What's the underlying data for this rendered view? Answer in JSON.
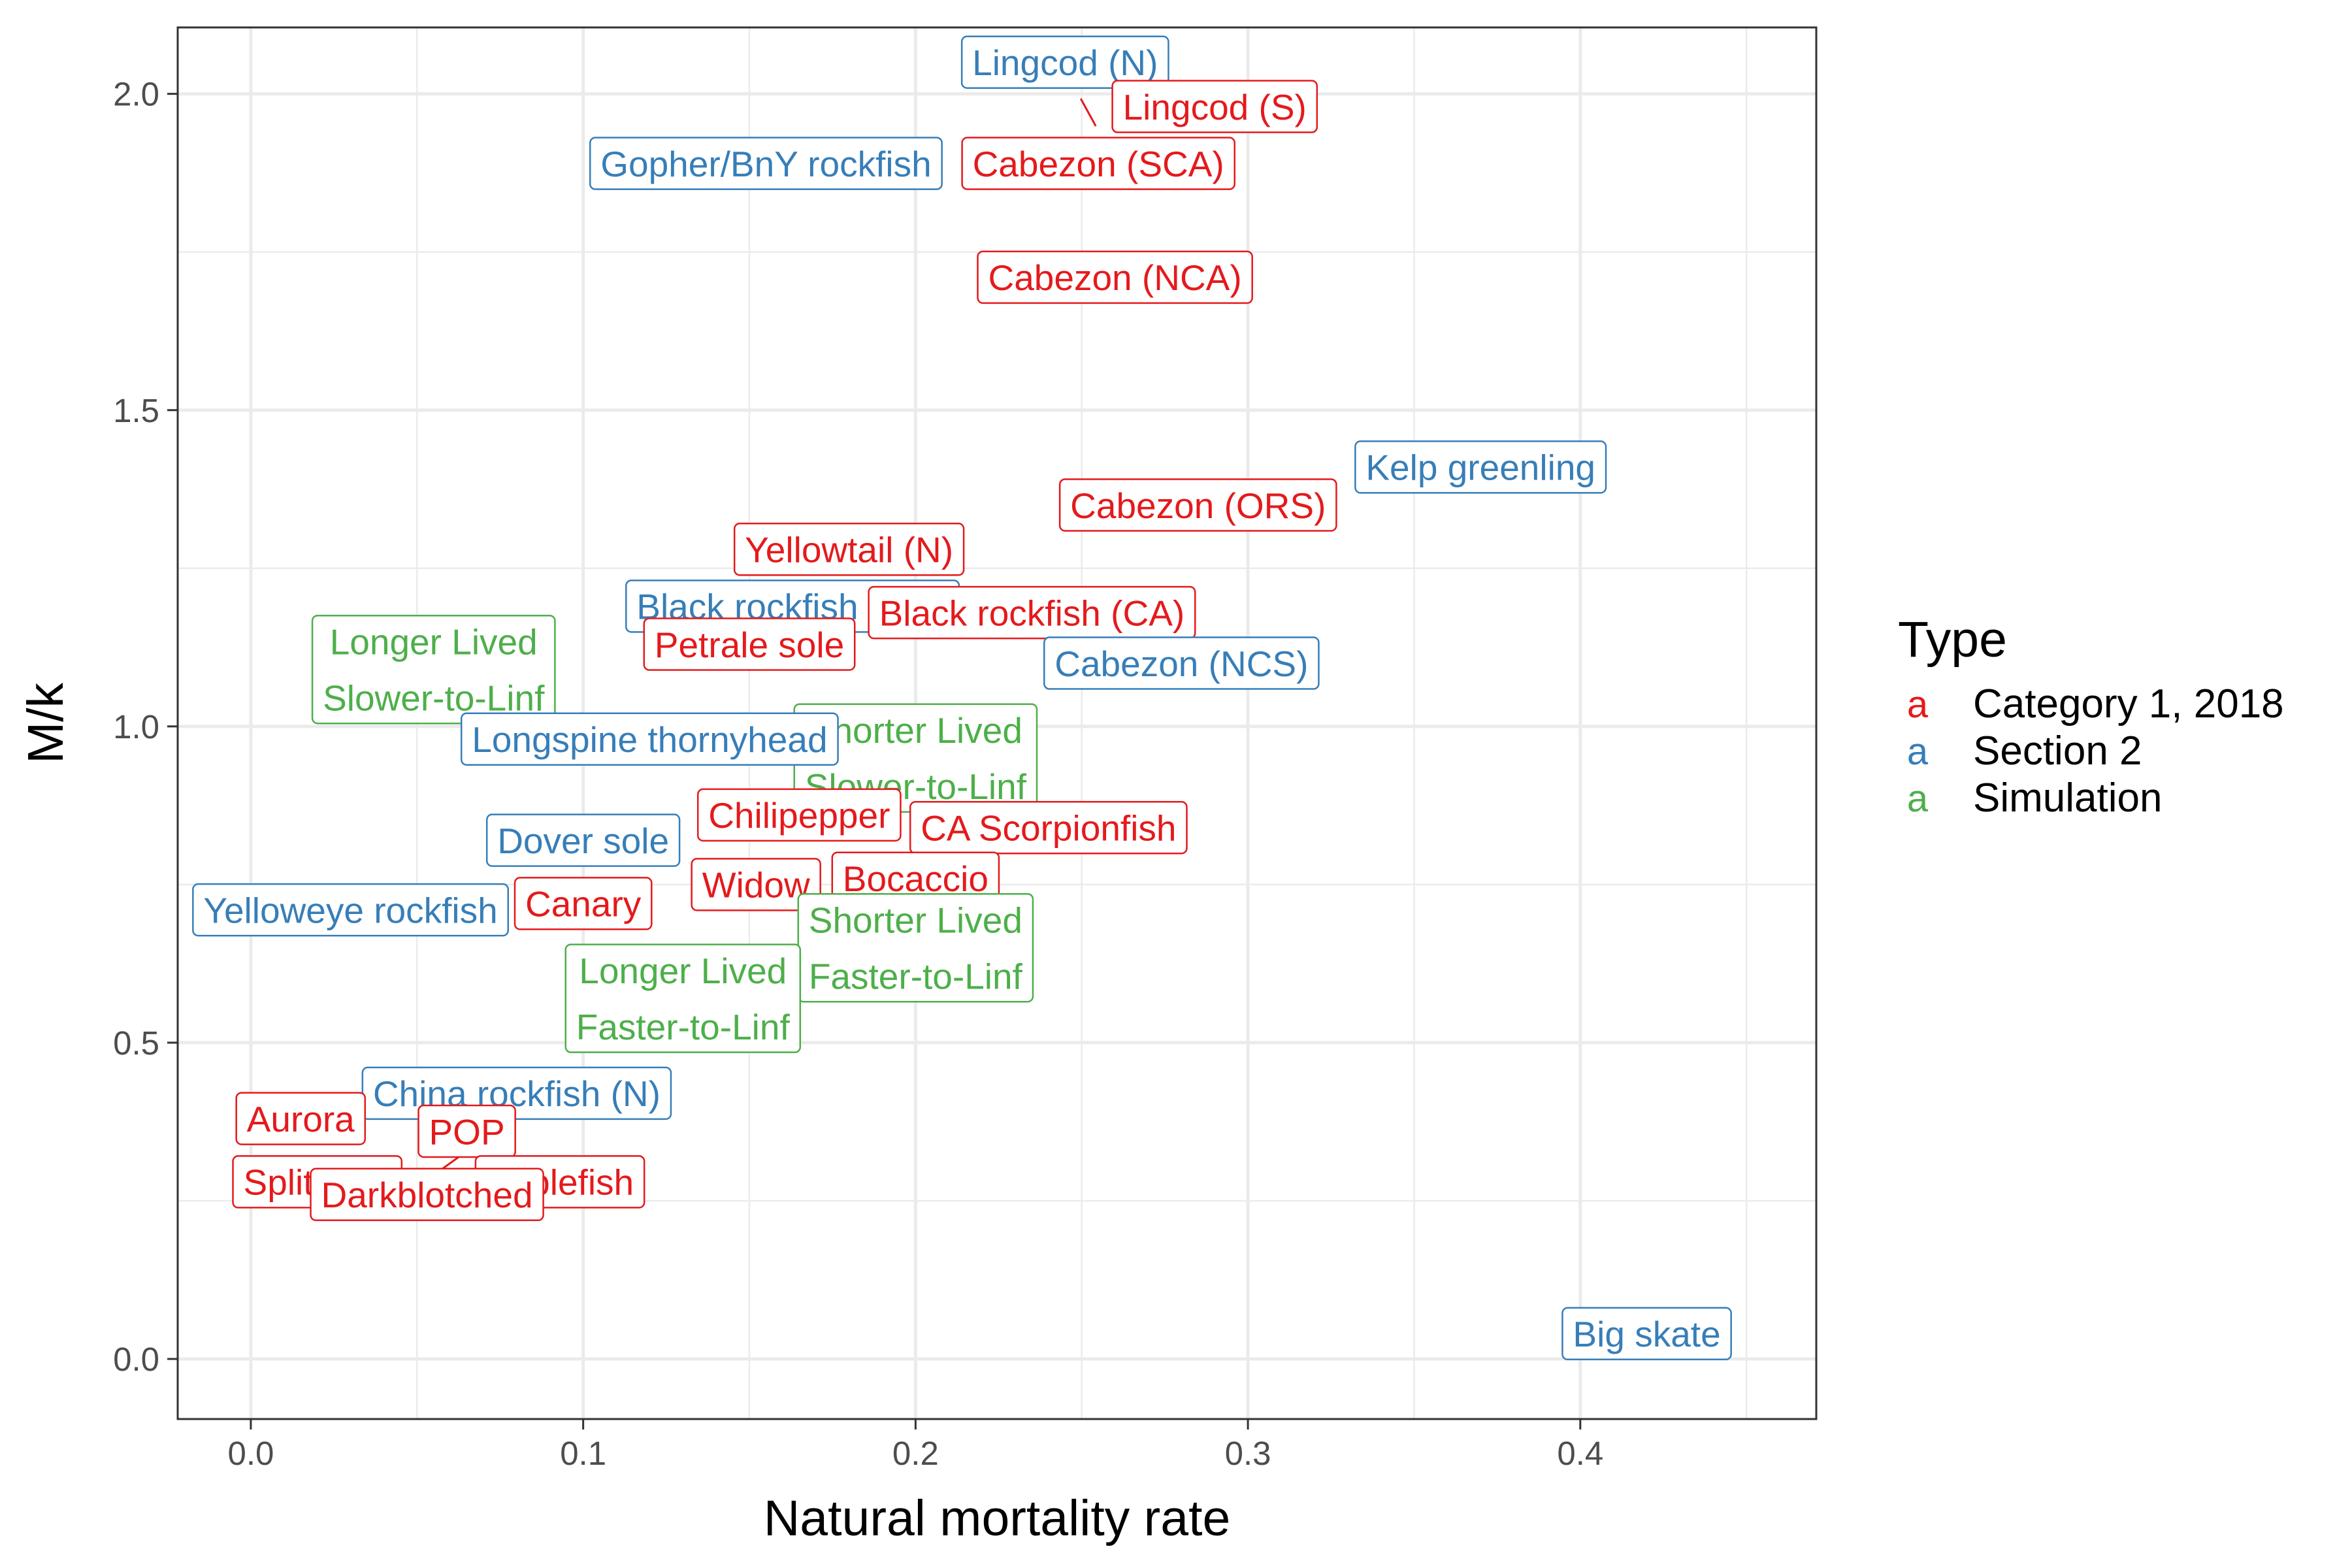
{
  "chart_data": {
    "type": "scatter",
    "title": "",
    "xlabel": "Natural mortality rate",
    "ylabel": "M/k",
    "xlim": [
      -0.022,
      0.471
    ],
    "ylim": [
      -0.095,
      2.105
    ],
    "x_ticks": [
      0.0,
      0.1,
      0.2,
      0.3,
      0.4
    ],
    "x_tick_labels": [
      "0.0",
      "0.1",
      "0.2",
      "0.3",
      "0.4"
    ],
    "y_ticks": [
      0.0,
      0.5,
      1.0,
      1.5,
      2.0
    ],
    "y_tick_labels": [
      "0.0",
      "0.5",
      "1.0",
      "1.5",
      "2.0"
    ],
    "grid": true,
    "legend": {
      "title": "Type",
      "position": "right",
      "key_glyph": "a",
      "entries": [
        {
          "name": "Category 1, 2018",
          "color": "#e41a1c"
        },
        {
          "name": "Section 2",
          "color": "#377eb8"
        },
        {
          "name": "Simulation",
          "color": "#4daf4a"
        }
      ]
    },
    "points": [
      {
        "label": "Lingcod (N)",
        "x": 0.245,
        "y": 2.05,
        "type": "Section 2"
      },
      {
        "label": "Lingcod (S)",
        "x": 0.29,
        "y": 1.98,
        "type": "Category 1, 2018"
      },
      {
        "label": "Cabezon (SCA)",
        "x": 0.255,
        "y": 1.89,
        "type": "Category 1, 2018"
      },
      {
        "label": "Gopher/BnY rockfish",
        "x": 0.155,
        "y": 1.89,
        "type": "Section 2"
      },
      {
        "label": "Cabezon (NCA)",
        "x": 0.26,
        "y": 1.71,
        "type": "Category 1, 2018"
      },
      {
        "label": "Kelp greenling",
        "x": 0.37,
        "y": 1.41,
        "type": "Section 2"
      },
      {
        "label": "Cabezon (ORS)",
        "x": 0.285,
        "y": 1.35,
        "type": "Category 1, 2018"
      },
      {
        "label": "Yellowtail (N)",
        "x": 0.18,
        "y": 1.28,
        "type": "Category 1, 2018"
      },
      {
        "label": "Black rockfish (WA)",
        "x": 0.163,
        "y": 1.19,
        "type": "Section 2"
      },
      {
        "label": "Black rockfish (CA)",
        "x": 0.235,
        "y": 1.18,
        "type": "Category 1, 2018"
      },
      {
        "label": "Longer Lived\nSlower-to-Linf",
        "x": 0.055,
        "y": 1.09,
        "type": "Simulation"
      },
      {
        "label": "Petrale sole",
        "x": 0.15,
        "y": 1.13,
        "type": "Category 1, 2018"
      },
      {
        "label": "Cabezon (NCS)",
        "x": 0.28,
        "y": 1.1,
        "type": "Section 2"
      },
      {
        "label": "Shorter Lived\nSlower-to-Linf",
        "x": 0.2,
        "y": 0.95,
        "type": "Simulation"
      },
      {
        "label": "Longspine thornyhead",
        "x": 0.12,
        "y": 0.98,
        "type": "Section 2"
      },
      {
        "label": "Chilipepper",
        "x": 0.165,
        "y": 0.86,
        "type": "Category 1, 2018"
      },
      {
        "label": "CA Scorpionfish",
        "x": 0.24,
        "y": 0.84,
        "type": "Category 1, 2018"
      },
      {
        "label": "Dover sole",
        "x": 0.1,
        "y": 0.82,
        "type": "Section 2"
      },
      {
        "label": "Widow",
        "x": 0.152,
        "y": 0.75,
        "type": "Category 1, 2018"
      },
      {
        "label": "Bocaccio",
        "x": 0.2,
        "y": 0.76,
        "type": "Category 1, 2018"
      },
      {
        "label": "Yelloweye rockfish",
        "x": 0.03,
        "y": 0.71,
        "type": "Section 2"
      },
      {
        "label": "Canary",
        "x": 0.1,
        "y": 0.72,
        "type": "Category 1, 2018"
      },
      {
        "label": "Shorter Lived\nFaster-to-Linf",
        "x": 0.2,
        "y": 0.65,
        "type": "Simulation"
      },
      {
        "label": "Longer Lived\nFaster-to-Linf",
        "x": 0.13,
        "y": 0.57,
        "type": "Simulation"
      },
      {
        "label": "China rockfish (N)",
        "x": 0.08,
        "y": 0.42,
        "type": "Section 2"
      },
      {
        "label": "Aurora",
        "x": 0.015,
        "y": 0.38,
        "type": "Category 1, 2018"
      },
      {
        "label": "POP",
        "x": 0.065,
        "y": 0.36,
        "type": "Category 1, 2018"
      },
      {
        "label": "Splitnose",
        "x": 0.02,
        "y": 0.28,
        "type": "Category 1, 2018"
      },
      {
        "label": "Sablefish",
        "x": 0.093,
        "y": 0.28,
        "type": "Category 1, 2018"
      },
      {
        "label": "Darkblotched",
        "x": 0.053,
        "y": 0.26,
        "type": "Category 1, 2018"
      },
      {
        "label": "Big skate",
        "x": 0.42,
        "y": 0.04,
        "type": "Section 2"
      }
    ]
  }
}
